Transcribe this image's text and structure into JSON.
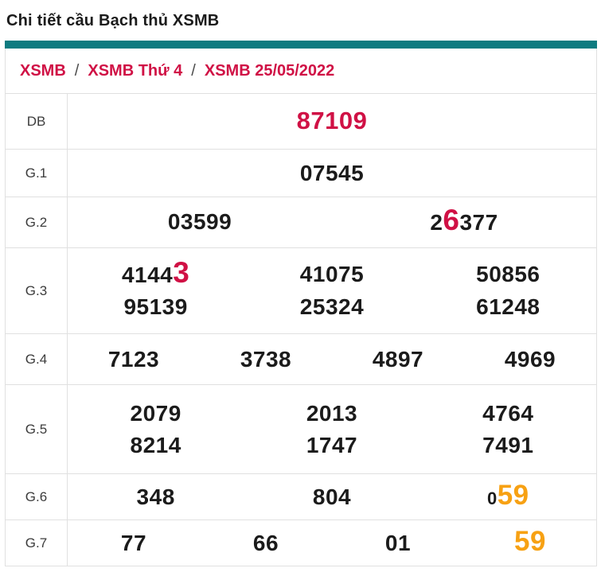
{
  "page_title": "Chi tiết cầu Bạch thủ XSMB",
  "breadcrumb": {
    "separator": "/",
    "items": [
      "XSMB",
      "XSMB Thứ 4",
      "XSMB 25/05/2022"
    ]
  },
  "colors": {
    "accent_teal": "#0e7b80",
    "crimson": "#d01145",
    "orange_highlight": "#f7a113",
    "text": "#1b1b1b",
    "border": "#e0e0e0"
  },
  "table": {
    "rows": [
      {
        "label": "DB",
        "lines": [
          [
            [
              {
                "text": "87109",
                "style": "crimson"
              }
            ]
          ]
        ]
      },
      {
        "label": "G.1",
        "lines": [
          [
            [
              {
                "text": "07545"
              }
            ]
          ]
        ]
      },
      {
        "label": "G.2",
        "lines": [
          [
            [
              {
                "text": "03599"
              }
            ],
            [
              {
                "text": "2"
              },
              {
                "text": "6",
                "style": "red-big"
              },
              {
                "text": "377"
              }
            ]
          ]
        ]
      },
      {
        "label": "G.3",
        "lines": [
          [
            [
              {
                "text": "4144"
              },
              {
                "text": "3",
                "style": "red-big"
              }
            ],
            [
              {
                "text": "41075"
              }
            ],
            [
              {
                "text": "50856"
              }
            ]
          ],
          [
            [
              {
                "text": "95139"
              }
            ],
            [
              {
                "text": "25324"
              }
            ],
            [
              {
                "text": "61248"
              }
            ]
          ]
        ]
      },
      {
        "label": "G.4",
        "lines": [
          [
            [
              {
                "text": "7123"
              }
            ],
            [
              {
                "text": "3738"
              }
            ],
            [
              {
                "text": "4897"
              }
            ],
            [
              {
                "text": "4969"
              }
            ]
          ]
        ]
      },
      {
        "label": "G.5",
        "lines": [
          [
            [
              {
                "text": "2079"
              }
            ],
            [
              {
                "text": "2013"
              }
            ],
            [
              {
                "text": "4764"
              }
            ]
          ],
          [
            [
              {
                "text": "8214"
              }
            ],
            [
              {
                "text": "1747"
              }
            ],
            [
              {
                "text": "7491"
              }
            ]
          ]
        ]
      },
      {
        "label": "G.6",
        "lines": [
          [
            [
              {
                "text": "348"
              }
            ],
            [
              {
                "text": "804"
              }
            ],
            [
              {
                "text": "0",
                "style": "small"
              },
              {
                "text": "59",
                "style": "orange-big"
              }
            ]
          ]
        ]
      },
      {
        "label": "G.7",
        "lines": [
          [
            [
              {
                "text": "77"
              }
            ],
            [
              {
                "text": "66"
              }
            ],
            [
              {
                "text": "01"
              }
            ],
            [
              {
                "text": "59",
                "style": "orange-big"
              }
            ]
          ]
        ]
      }
    ]
  }
}
